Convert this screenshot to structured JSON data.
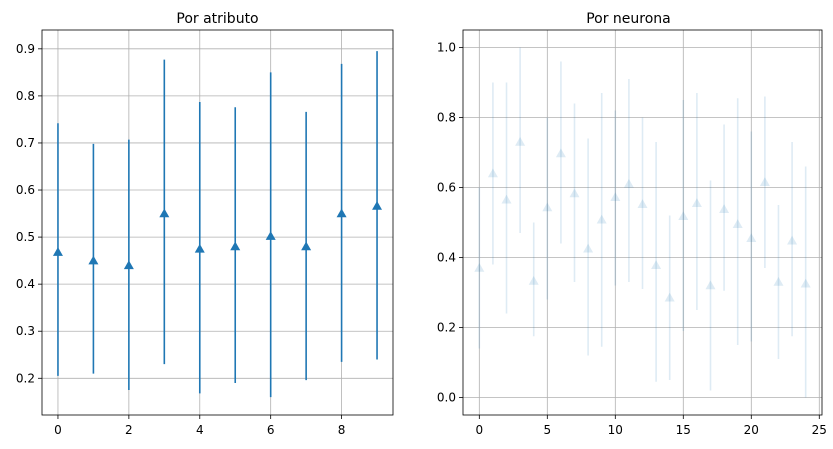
{
  "chart_data": [
    {
      "type": "scatter",
      "title": "Por atributo",
      "marker": "triangle-up",
      "color": "#1f77b4",
      "opacity": 1.0,
      "xlim": [
        -0.45,
        9.45
      ],
      "ylim": [
        0.122,
        0.94
      ],
      "xticks": [
        0,
        2,
        4,
        6,
        8
      ],
      "yticks": [
        0.2,
        0.3,
        0.4,
        0.5,
        0.6,
        0.7,
        0.8,
        0.9
      ],
      "grid": true,
      "x": [
        0,
        1,
        2,
        3,
        4,
        5,
        6,
        7,
        8,
        9
      ],
      "y": [
        0.468,
        0.45,
        0.44,
        0.55,
        0.475,
        0.48,
        0.502,
        0.48,
        0.55,
        0.566
      ],
      "err_low": [
        0.205,
        0.21,
        0.175,
        0.23,
        0.168,
        0.19,
        0.16,
        0.196,
        0.235,
        0.24
      ],
      "err_high": [
        0.742,
        0.698,
        0.707,
        0.877,
        0.787,
        0.776,
        0.85,
        0.766,
        0.868,
        0.895
      ]
    },
    {
      "type": "scatter",
      "title": "Por neurona",
      "marker": "triangle-up",
      "color": "#1f77b4",
      "opacity": 0.15,
      "xlim": [
        -1.2,
        25.2
      ],
      "ylim": [
        -0.05,
        1.05
      ],
      "xticks": [
        0,
        5,
        10,
        15,
        20,
        25
      ],
      "yticks": [
        0.0,
        0.2,
        0.4,
        0.6,
        0.8,
        1.0
      ],
      "grid": true,
      "x": [
        0,
        1,
        2,
        3,
        4,
        5,
        6,
        7,
        8,
        9,
        10,
        11,
        12,
        13,
        14,
        15,
        16,
        17,
        18,
        19,
        20,
        21,
        22,
        23,
        24
      ],
      "y": [
        0.37,
        0.64,
        0.565,
        0.73,
        0.333,
        0.543,
        0.697,
        0.583,
        0.425,
        0.508,
        0.572,
        0.61,
        0.552,
        0.378,
        0.285,
        0.518,
        0.555,
        0.32,
        0.538,
        0.495,
        0.455,
        0.615,
        0.33,
        0.448,
        0.325
      ],
      "err_low": [
        0.14,
        0.38,
        0.24,
        0.47,
        0.175,
        0.28,
        0.44,
        0.33,
        0.12,
        0.145,
        0.32,
        0.33,
        0.31,
        0.045,
        0.05,
        0.19,
        0.25,
        0.02,
        0.305,
        0.15,
        0.16,
        0.37,
        0.11,
        0.175,
        0.0
      ],
      "err_high": [
        0.6,
        0.9,
        0.9,
        1.0,
        0.5,
        0.8,
        0.96,
        0.84,
        0.74,
        0.87,
        0.82,
        0.91,
        0.8,
        0.73,
        0.52,
        0.85,
        0.87,
        0.62,
        0.78,
        0.855,
        0.76,
        0.86,
        0.55,
        0.73,
        0.66
      ]
    }
  ]
}
